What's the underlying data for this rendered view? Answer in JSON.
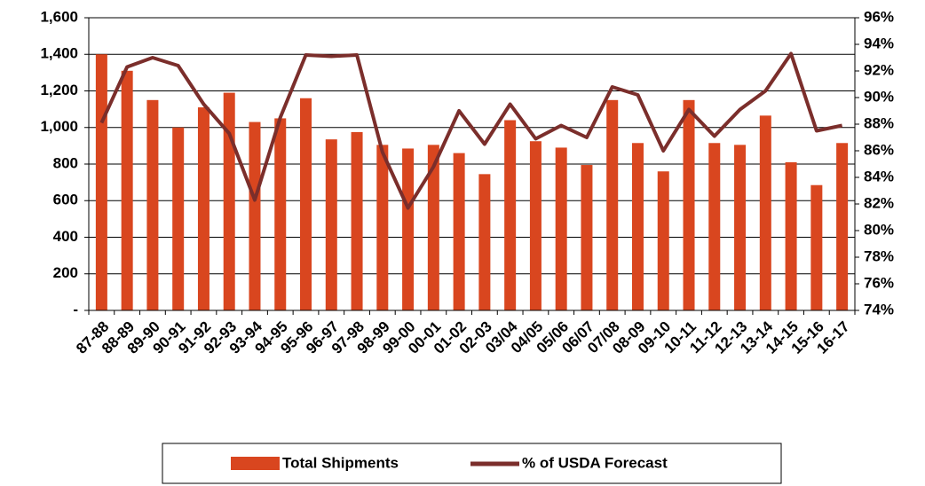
{
  "chart_data": {
    "type": "bar_line",
    "categories": [
      "87-88",
      "88-89",
      "89-90",
      "90-91",
      "91-92",
      "92-93",
      "93-94",
      "94-95",
      "95-96",
      "96-97",
      "97-98",
      "98-99",
      "99-00",
      "00-01",
      "01-02",
      "02-03",
      "03/04",
      "04/05",
      "05/06",
      "06/07",
      "07/08",
      "08-09",
      "09-10",
      "10-11",
      "11-12",
      "12-13",
      "13-14",
      "14-15",
      "15-16",
      "16-17"
    ],
    "series": [
      {
        "name": "Total Shipments",
        "color": "#d9461f",
        "type": "bar",
        "values": [
          1400,
          1310,
          1150,
          1000,
          1110,
          1190,
          1030,
          1050,
          1160,
          935,
          975,
          905,
          885,
          905,
          860,
          745,
          1040,
          925,
          890,
          795,
          1150,
          915,
          760,
          1150,
          915,
          905,
          1065,
          810,
          685,
          915
        ]
      },
      {
        "name": "% of USDA Forecast",
        "color": "#7b2e2b",
        "type": "line",
        "axis": "y2",
        "values": [
          88.1,
          92.3,
          93.0,
          92.4,
          89.5,
          87.3,
          82.3,
          88.5,
          93.2,
          93.1,
          93.2,
          85.9,
          81.7,
          84.8,
          89.0,
          86.5,
          89.5,
          86.9,
          87.9,
          87.0,
          90.8,
          90.2,
          86.0,
          89.1,
          87.1,
          89.1,
          90.5,
          93.3,
          87.5,
          87.9
        ]
      }
    ],
    "ylim": [
      0,
      1600
    ],
    "yticks": [
      {
        "value": 0,
        "label": "-"
      },
      200,
      400,
      600,
      800,
      {
        "value": 1000,
        "label": "1,000"
      },
      {
        "value": 1200,
        "label": "1,200"
      },
      {
        "value": 1400,
        "label": "1,400"
      },
      {
        "value": 1600,
        "label": "1,600"
      }
    ],
    "y2lim": [
      74,
      96
    ],
    "y2ticks": [
      {
        "value": 74,
        "label": "74%"
      },
      {
        "value": 76,
        "label": "76%"
      },
      {
        "value": 78,
        "label": "78%"
      },
      {
        "value": 80,
        "label": "80%"
      },
      {
        "value": 82,
        "label": "82%"
      },
      {
        "value": 84,
        "label": "84%"
      },
      {
        "value": 86,
        "label": "86%"
      },
      {
        "value": 88,
        "label": "88%"
      },
      {
        "value": 90,
        "label": "90%"
      },
      {
        "value": 92,
        "label": "92%"
      },
      {
        "value": 94,
        "label": "94%"
      },
      {
        "value": 96,
        "label": "96%"
      }
    ],
    "grid": true,
    "legend": "bottom"
  }
}
